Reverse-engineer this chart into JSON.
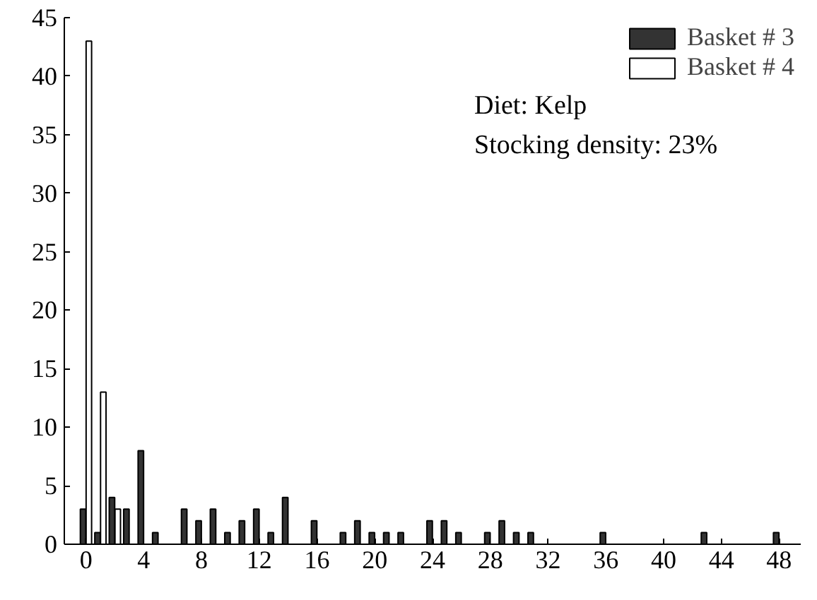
{
  "chart_data": {
    "type": "bar",
    "series": [
      {
        "name": "Basket # 3",
        "color": "#333333",
        "x": [
          0,
          1,
          2,
          3,
          4,
          5,
          7,
          8,
          9,
          10,
          11,
          12,
          13,
          14,
          16,
          18,
          19,
          20,
          21,
          22,
          24,
          25,
          26,
          28,
          29,
          30,
          31,
          36,
          43,
          48
        ],
        "values": [
          3,
          1,
          4,
          3,
          8,
          1,
          3,
          2,
          3,
          1,
          2,
          3,
          1,
          4,
          2,
          1,
          2,
          1,
          1,
          1,
          2,
          2,
          1,
          1,
          2,
          1,
          1,
          1,
          1,
          1
        ]
      },
      {
        "name": "Basket # 4",
        "color": "#ffffff",
        "x": [
          0,
          1,
          2
        ],
        "values": [
          43,
          13,
          3
        ]
      }
    ],
    "xlim": [
      -1.5,
      49.5
    ],
    "xticks": [
      0,
      4,
      8,
      12,
      16,
      20,
      24,
      28,
      32,
      36,
      40,
      44,
      48
    ],
    "ylim": [
      0,
      45
    ],
    "yticks": [
      0,
      5,
      10,
      15,
      20,
      25,
      30,
      35,
      40,
      45
    ],
    "annotations": [
      "Diet: Kelp",
      "Stocking density: 23%"
    ],
    "grid": false,
    "legend": "top right"
  }
}
